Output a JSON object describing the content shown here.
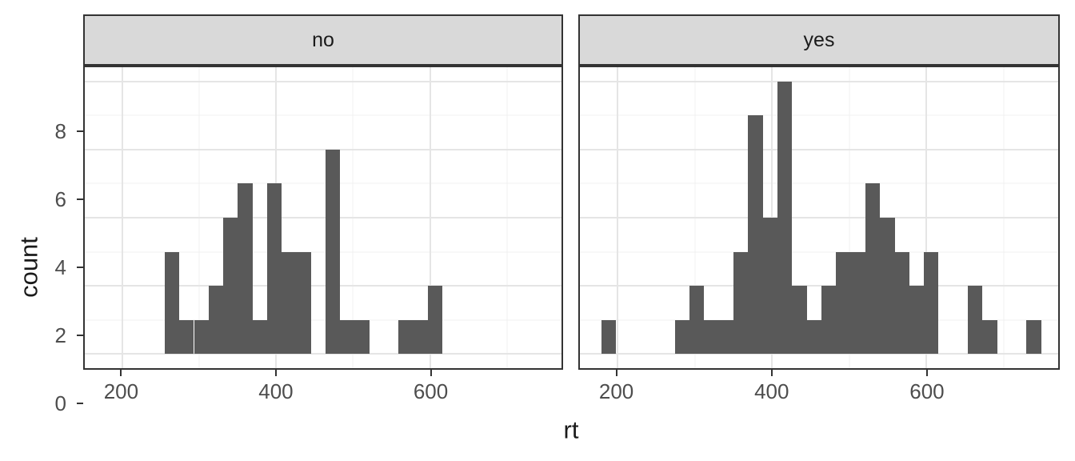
{
  "chart_data": {
    "type": "bar",
    "subtype": "faceted-histogram",
    "title": "",
    "xlabel": "rt",
    "ylabel": "count",
    "facet_labels": [
      "no",
      "yes"
    ],
    "bin_start": 179,
    "bin_width": 19,
    "x_domain": [
      151,
      771
    ],
    "y_domain": [
      -0.42,
      8.42
    ],
    "x_ticks": [
      200,
      400,
      600
    ],
    "x_minor_gridlines": [
      300,
      500,
      700
    ],
    "y_ticks": [
      0,
      2,
      4,
      6,
      8
    ],
    "y_minor_gridlines": [
      1,
      3,
      5,
      7
    ],
    "grid": true,
    "legend": "none",
    "facets": [
      {
        "label": "no",
        "counts": [
          0,
          0,
          0,
          0,
          3,
          1,
          1,
          2,
          4,
          5,
          1,
          5,
          3,
          3,
          0,
          6,
          1,
          1,
          0,
          0,
          1,
          1,
          2,
          0,
          0,
          0,
          0,
          0,
          0,
          0
        ]
      },
      {
        "label": "yes",
        "counts": [
          1,
          0,
          0,
          0,
          0,
          1,
          2,
          1,
          1,
          3,
          7,
          4,
          8,
          2,
          1,
          2,
          3,
          3,
          5,
          4,
          3,
          2,
          3,
          0,
          0,
          2,
          1,
          0,
          0,
          1
        ]
      }
    ],
    "colors": {
      "bar_fill": "#595959",
      "panel_background": "#FFFFFF",
      "panel_border": "#333333",
      "strip_background": "#D9D9D9",
      "strip_border": "#333333",
      "grid_major": "#E5E5E5",
      "grid_minor": "#F1F1F1",
      "tick_mark": "#333333",
      "tick_label": "#4D4D4D",
      "axis_title": "#1A1A1A"
    }
  }
}
